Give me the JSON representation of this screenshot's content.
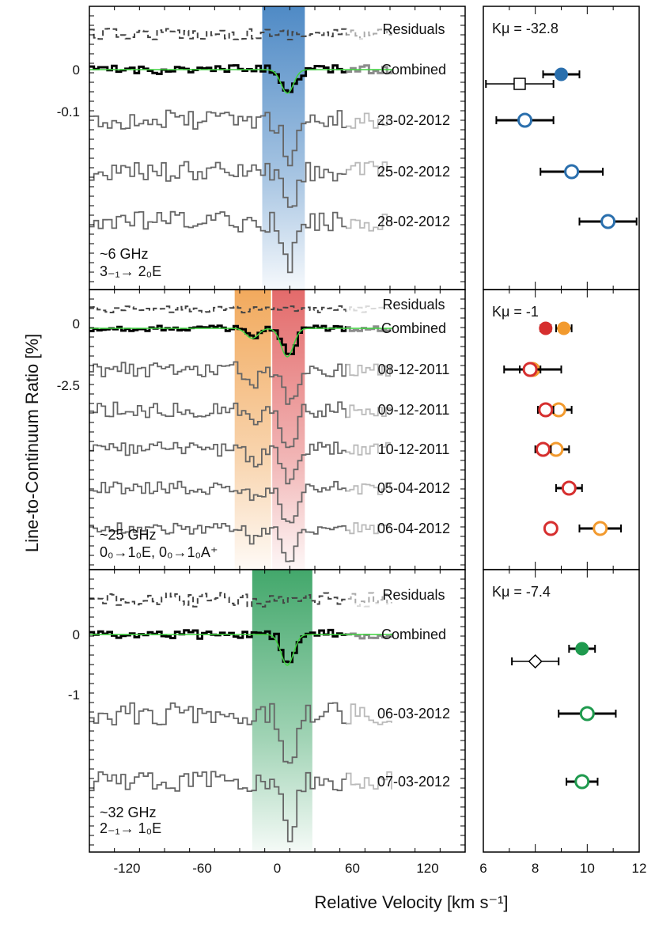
{
  "figure": {
    "ylabel": "Line-to-Continuum Ratio [%]",
    "xlabel": "Relative Velocity [km s⁻¹]"
  },
  "chart_data": [
    {
      "type": "line",
      "panel": "top",
      "xlim": [
        -150,
        150
      ],
      "xticks": [
        -120,
        -60,
        0,
        60,
        120
      ],
      "ytick_labels": [
        "0",
        "-0.1"
      ],
      "transition": {
        "freq": "~6 GHz",
        "label": "3₋₁→ 2₀E"
      },
      "band_color": "#3b7dbf",
      "velocity_band": [
        -12,
        22
      ],
      "line_center": 8,
      "series": [
        {
          "name": "Residuals",
          "depth": 0,
          "noise": 1.0,
          "dashed": true
        },
        {
          "name": "Combined",
          "depth": 1.0,
          "noise": 0.8,
          "bold": true,
          "fit": true
        },
        {
          "name": "23-02-2012",
          "depth": 1.6,
          "noise": 1.8
        },
        {
          "name": "25-02-2012",
          "depth": 1.6,
          "noise": 1.8
        },
        {
          "name": "28-02-2012",
          "depth": 1.8,
          "noise": 1.9
        }
      ],
      "kmu": {
        "label": "Kμ = -32.8",
        "points": [
          {
            "row": "Combined",
            "value": 9.0,
            "err": 0.7,
            "marker": "filled-circle",
            "color": "#2a6fad"
          },
          {
            "row": "Combined-alt",
            "value": 7.4,
            "err": 1.3,
            "marker": "open-square",
            "color": "#000000"
          },
          {
            "row": "23-02-2012",
            "value": 7.6,
            "err": 1.1,
            "marker": "open-circle",
            "color": "#2a6fad"
          },
          {
            "row": "25-02-2012",
            "value": 9.4,
            "err": 1.2,
            "marker": "open-circle",
            "color": "#2a6fad"
          },
          {
            "row": "28-02-2012",
            "value": 10.8,
            "err": 1.1,
            "marker": "open-circle",
            "color": "#2a6fad"
          }
        ]
      }
    },
    {
      "type": "line",
      "panel": "middle",
      "xlim": [
        -150,
        150
      ],
      "xticks": [
        -120,
        -60,
        0,
        60,
        120
      ],
      "ytick_labels": [
        "0",
        "-2.5"
      ],
      "transition": {
        "freq": "~25 GHz",
        "label": "0₀→1₀E, 0₀→1₀A⁺"
      },
      "bands": [
        {
          "color": "#f0a04b",
          "range": [
            -34,
            -5
          ]
        },
        {
          "color": "#e05a5a",
          "range": [
            -4,
            22
          ]
        }
      ],
      "line_centers": [
        -20,
        8
      ],
      "series": [
        {
          "name": "Residuals",
          "depth": 0,
          "noise": 0.6,
          "dashed": true
        },
        {
          "name": "Combined",
          "depth": 1.2,
          "noise": 0.5,
          "bold": true,
          "fit": true
        },
        {
          "name": "08-12-2011",
          "depth": 1.5,
          "noise": 1.4
        },
        {
          "name": "09-12-2011",
          "depth": 1.6,
          "noise": 1.4
        },
        {
          "name": "10-12-2011",
          "depth": 1.5,
          "noise": 1.3
        },
        {
          "name": "05-04-2012",
          "depth": 1.6,
          "noise": 1.2
        },
        {
          "name": "06-04-2012",
          "depth": 1.5,
          "noise": 1.0
        }
      ],
      "kmu": {
        "label": "Kμ = -1",
        "points": [
          {
            "row": "Combined",
            "value": 8.4,
            "err": 0.2,
            "marker": "filled-circle",
            "color": "#d62f2f"
          },
          {
            "row": "Combined",
            "value": 9.1,
            "err": 0.3,
            "marker": "filled-circle",
            "color": "#f29a2e"
          },
          {
            "row": "08-12-2011",
            "value": 7.9,
            "err": 1.1,
            "marker": "open-circle",
            "color": "#f29a2e"
          },
          {
            "row": "08-12-2011",
            "value": 7.8,
            "err": 0.4,
            "marker": "open-circle",
            "color": "#d62f2f"
          },
          {
            "row": "09-12-2011",
            "value": 8.9,
            "err": 0.5,
            "marker": "open-circle",
            "color": "#f29a2e"
          },
          {
            "row": "09-12-2011",
            "value": 8.4,
            "err": 0.3,
            "marker": "open-circle",
            "color": "#d62f2f"
          },
          {
            "row": "10-12-2011",
            "value": 8.8,
            "err": 0.5,
            "marker": "open-circle",
            "color": "#f29a2e"
          },
          {
            "row": "10-12-2011",
            "value": 8.3,
            "err": 0.3,
            "marker": "open-circle",
            "color": "#d62f2f"
          },
          {
            "row": "05-04-2012",
            "value": 9.3,
            "err": 0.5,
            "marker": "open-circle",
            "color": "#d62f2f"
          },
          {
            "row": "06-04-2012",
            "value": 8.6,
            "err": 0.2,
            "marker": "open-circle",
            "color": "#d62f2f"
          },
          {
            "row": "06-04-2012",
            "value": 10.5,
            "err": 0.8,
            "marker": "open-circle",
            "color": "#f29a2e"
          }
        ]
      }
    },
    {
      "type": "line",
      "panel": "bottom",
      "xlim": [
        -150,
        150
      ],
      "xticks": [
        -120,
        -60,
        0,
        60,
        120
      ],
      "ytick_labels": [
        "0",
        "-1"
      ],
      "transition": {
        "freq": "~32 GHz",
        "label": "2₋₁→ 1₀E"
      },
      "band_color": "#2e9e5b",
      "velocity_band": [
        -20,
        28
      ],
      "line_center": 8,
      "series": [
        {
          "name": "Residuals",
          "depth": 0,
          "noise": 1.3,
          "dashed": true
        },
        {
          "name": "Combined",
          "depth": 1.3,
          "noise": 0.8,
          "bold": true,
          "fit": true
        },
        {
          "name": "06-03-2012",
          "depth": 2.0,
          "noise": 2.0
        },
        {
          "name": "07-03-2012",
          "depth": 2.2,
          "noise": 1.8
        }
      ],
      "kmu": {
        "label": "Kμ = -7.4",
        "points": [
          {
            "row": "Combined",
            "value": 9.8,
            "err": 0.5,
            "marker": "filled-circle",
            "color": "#1f9a4e"
          },
          {
            "row": "Combined-alt",
            "value": 8.0,
            "err": 0.9,
            "marker": "open-diamond",
            "color": "#000000"
          },
          {
            "row": "06-03-2012",
            "value": 10.0,
            "err": 1.1,
            "marker": "open-circle",
            "color": "#1f9a4e"
          },
          {
            "row": "07-03-2012",
            "value": 9.8,
            "err": 0.6,
            "marker": "open-circle",
            "color": "#1f9a4e"
          }
        ]
      }
    }
  ],
  "right_axis": {
    "xlim": [
      6,
      12
    ],
    "xticks": [
      6,
      8,
      10,
      12
    ]
  }
}
